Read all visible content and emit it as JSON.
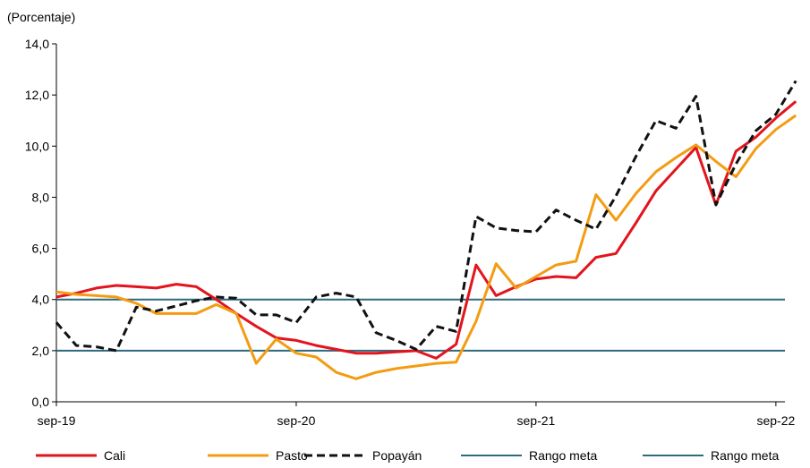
{
  "chart_data": {
    "type": "line",
    "unit_label": "(Porcentaje)",
    "ylim": [
      0,
      14
    ],
    "y_ticks": [
      "0,0",
      "2,0",
      "4,0",
      "6,0",
      "8,0",
      "10,0",
      "12,0",
      "14,0"
    ],
    "x_ticks": [
      "sep-19",
      "sep-20",
      "sep-21",
      "sep-22"
    ],
    "x_tick_positions": [
      0,
      12,
      24,
      36
    ],
    "grid": false,
    "legend_position": "bottom",
    "series": [
      {
        "name": "Cali",
        "color": "#E3141E",
        "dash": "solid",
        "values": [
          4.1,
          4.25,
          4.45,
          4.55,
          4.5,
          4.45,
          4.6,
          4.5,
          4.0,
          3.45,
          2.95,
          2.5,
          2.4,
          2.2,
          2.05,
          1.9,
          1.9,
          1.95,
          2.0,
          1.7,
          2.25,
          5.35,
          4.15,
          4.5,
          4.8,
          4.9,
          4.85,
          5.65,
          5.8,
          7.0,
          8.25,
          9.1,
          9.95,
          7.7,
          9.8,
          10.35,
          11.1,
          11.75
        ]
      },
      {
        "name": "Pasto",
        "color": "#F39C12",
        "dash": "solid",
        "values": [
          4.3,
          4.2,
          4.15,
          4.1,
          3.85,
          3.45,
          3.45,
          3.45,
          3.8,
          3.45,
          1.5,
          2.45,
          1.9,
          1.75,
          1.15,
          0.9,
          1.15,
          1.3,
          1.4,
          1.5,
          1.55,
          3.15,
          5.4,
          4.45,
          4.9,
          5.35,
          5.5,
          8.1,
          7.1,
          8.15,
          9.0,
          9.55,
          10.05,
          9.4,
          8.8,
          9.9,
          10.65,
          11.2
        ]
      },
      {
        "name": "Popayán",
        "color": "#111111",
        "dash": "dashed",
        "values": [
          3.1,
          2.2,
          2.15,
          2.0,
          3.7,
          3.55,
          3.75,
          3.95,
          4.1,
          4.05,
          3.4,
          3.4,
          3.1,
          4.1,
          4.25,
          4.1,
          2.7,
          2.4,
          2.05,
          2.95,
          2.75,
          7.25,
          6.8,
          6.7,
          6.65,
          7.5,
          7.1,
          6.75,
          8.05,
          9.6,
          11.0,
          10.7,
          11.95,
          7.7,
          9.3,
          10.6,
          11.25,
          12.55
        ]
      },
      {
        "name": "Rango meta",
        "color": "#2E6A7E",
        "dash": "solid",
        "constant": 4.0
      },
      {
        "name": "Rango meta",
        "color": "#2E6A7E",
        "dash": "solid",
        "constant": 2.0
      }
    ]
  }
}
